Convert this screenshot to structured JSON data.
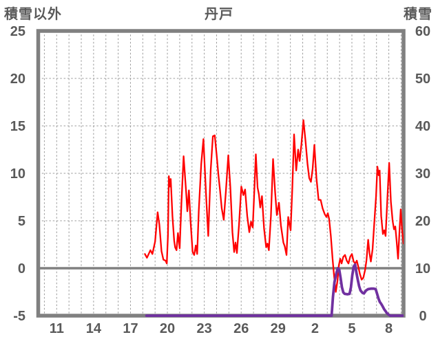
{
  "header": {
    "left_axis_title": "積雪以外",
    "chart_title": "丹戸",
    "right_axis_title": "積雪"
  },
  "colors": {
    "temperature_line": "#FF0000",
    "snow_line": "#7030A0",
    "border": "#808080",
    "zero_line": "#808080",
    "gridline": "#9B9B9B",
    "text": "#595959",
    "background": "#FFFFFF"
  },
  "chart_data": {
    "type": "line",
    "title": "丹戸",
    "grid": true,
    "legend": "none",
    "left_axis": {
      "label": "積雪以外",
      "min": -5,
      "max": 25,
      "tick_step": 5,
      "tick_labels": [
        "-5",
        "0",
        "5",
        "10",
        "15",
        "20",
        "25"
      ]
    },
    "right_axis": {
      "label": "積雪",
      "min": 0,
      "max": 60,
      "tick_step": 10,
      "tick_labels": [
        "0",
        "10",
        "20",
        "30",
        "40",
        "50",
        "60"
      ]
    },
    "x_axis": {
      "domain": [
        9.5,
        39.2
      ],
      "grid_step": 1,
      "note": "day-of-month scale: 11..30 = Nov 11-30, 31..39 = Dec 1-9",
      "ticks": [
        {
          "pos": 11,
          "label": "11"
        },
        {
          "pos": 14,
          "label": "14"
        },
        {
          "pos": 17,
          "label": "17"
        },
        {
          "pos": 20,
          "label": "20"
        },
        {
          "pos": 23,
          "label": "23"
        },
        {
          "pos": 26,
          "label": "26"
        },
        {
          "pos": 29,
          "label": "29"
        },
        {
          "pos": 32,
          "label": "2"
        },
        {
          "pos": 35,
          "label": "5"
        },
        {
          "pos": 38,
          "label": "8"
        }
      ]
    },
    "zero_line_value": 0,
    "series": [
      {
        "name": "積雪以外",
        "axis": "left",
        "color": "#FF0000",
        "stroke_width": 2.3,
        "points": [
          [
            18.17,
            1.5
          ],
          [
            18.34,
            1.1
          ],
          [
            18.62,
            1.9
          ],
          [
            18.78,
            1.5
          ],
          [
            19.0,
            2.8
          ],
          [
            19.21,
            5.9
          ],
          [
            19.35,
            4.6
          ],
          [
            19.52,
            1.8
          ],
          [
            19.68,
            0.9
          ],
          [
            19.85,
            0.8
          ],
          [
            19.95,
            0.5
          ],
          [
            20.05,
            3.5
          ],
          [
            20.12,
            9.7
          ],
          [
            20.19,
            8.6
          ],
          [
            20.27,
            9.4
          ],
          [
            20.41,
            5.5
          ],
          [
            20.55,
            2.9
          ],
          [
            20.63,
            2.2
          ],
          [
            20.74,
            1.9
          ],
          [
            20.86,
            3.7
          ],
          [
            21.0,
            2.1
          ],
          [
            21.14,
            6.8
          ],
          [
            21.32,
            11.8
          ],
          [
            21.52,
            8.1
          ],
          [
            21.62,
            6.0
          ],
          [
            21.75,
            8.2
          ],
          [
            21.9,
            4.6
          ],
          [
            22.05,
            1.7
          ],
          [
            22.18,
            1.4
          ],
          [
            22.31,
            2.4
          ],
          [
            22.42,
            1.5
          ],
          [
            22.55,
            6.0
          ],
          [
            22.75,
            11.0
          ],
          [
            22.93,
            13.6
          ],
          [
            23.15,
            7.6
          ],
          [
            23.32,
            3.4
          ],
          [
            23.52,
            10.3
          ],
          [
            23.7,
            13.9
          ],
          [
            23.85,
            14.0
          ],
          [
            24.0,
            12.0
          ],
          [
            24.15,
            9.8
          ],
          [
            24.28,
            8.2
          ],
          [
            24.42,
            6.3
          ],
          [
            24.58,
            5.1
          ],
          [
            24.75,
            8.0
          ],
          [
            24.95,
            11.9
          ],
          [
            25.12,
            8.5
          ],
          [
            25.29,
            3.8
          ],
          [
            25.43,
            1.7
          ],
          [
            25.54,
            2.7
          ],
          [
            25.65,
            1.6
          ],
          [
            25.82,
            4.5
          ],
          [
            26.01,
            8.6
          ],
          [
            26.18,
            7.7
          ],
          [
            26.32,
            8.3
          ],
          [
            26.49,
            5.5
          ],
          [
            26.66,
            3.8
          ],
          [
            26.8,
            4.9
          ],
          [
            26.94,
            4.3
          ],
          [
            27.08,
            8.5
          ],
          [
            27.19,
            12.0
          ],
          [
            27.33,
            8.5
          ],
          [
            27.44,
            7.8
          ],
          [
            27.55,
            6.4
          ],
          [
            27.69,
            7.6
          ],
          [
            27.86,
            4.2
          ],
          [
            28.03,
            2.2
          ],
          [
            28.14,
            2.6
          ],
          [
            28.25,
            1.9
          ],
          [
            28.42,
            5.5
          ],
          [
            28.59,
            11.5
          ],
          [
            28.76,
            8.0
          ],
          [
            28.9,
            5.6
          ],
          [
            29.07,
            6.9
          ],
          [
            29.23,
            4.5
          ],
          [
            29.43,
            2.7
          ],
          [
            29.54,
            2.3
          ],
          [
            29.68,
            1.4
          ],
          [
            29.82,
            5.4
          ],
          [
            29.93,
            4.6
          ],
          [
            30.02,
            4.0
          ],
          [
            30.16,
            8.5
          ],
          [
            30.3,
            14.1
          ],
          [
            30.47,
            10.3
          ],
          [
            30.63,
            12.5
          ],
          [
            30.75,
            11.3
          ],
          [
            30.89,
            13.0
          ],
          [
            31.06,
            15.6
          ],
          [
            31.22,
            13.5
          ],
          [
            31.39,
            11.0
          ],
          [
            31.53,
            9.5
          ],
          [
            31.67,
            9.1
          ],
          [
            31.81,
            10.5
          ],
          [
            31.95,
            13.0
          ],
          [
            32.12,
            9.5
          ],
          [
            32.29,
            7.2
          ],
          [
            32.46,
            7.2
          ],
          [
            32.62,
            6.3
          ],
          [
            32.79,
            5.7
          ],
          [
            32.93,
            5.4
          ],
          [
            33.04,
            5.8
          ],
          [
            33.15,
            5.2
          ],
          [
            33.29,
            3.4
          ],
          [
            33.43,
            1.0
          ],
          [
            33.55,
            -0.8
          ],
          [
            33.69,
            -2.5
          ],
          [
            33.83,
            -1.3
          ],
          [
            33.94,
            0.3
          ],
          [
            34.05,
            1.0
          ],
          [
            34.16,
            0.5
          ],
          [
            34.3,
            1.2
          ],
          [
            34.44,
            1.4
          ],
          [
            34.58,
            0.8
          ],
          [
            34.72,
            0.5
          ],
          [
            34.86,
            1.2
          ],
          [
            35.0,
            1.5
          ],
          [
            35.14,
            0.7
          ],
          [
            35.28,
            0.5
          ],
          [
            35.4,
            0.8
          ],
          [
            35.51,
            0.2
          ],
          [
            35.65,
            -0.6
          ],
          [
            35.79,
            -1.2
          ],
          [
            35.93,
            -1.0
          ],
          [
            36.07,
            -0.2
          ],
          [
            36.18,
            0.8
          ],
          [
            36.32,
            3.0
          ],
          [
            36.43,
            1.6
          ],
          [
            36.54,
            0.7
          ],
          [
            36.68,
            2.0
          ],
          [
            36.82,
            4.8
          ],
          [
            36.96,
            7.5
          ],
          [
            37.07,
            10.7
          ],
          [
            37.18,
            9.8
          ],
          [
            37.26,
            10.3
          ],
          [
            37.38,
            5.5
          ],
          [
            37.52,
            3.6
          ],
          [
            37.63,
            4.0
          ],
          [
            37.74,
            3.4
          ],
          [
            37.89,
            7.5
          ],
          [
            38.03,
            11.1
          ],
          [
            38.17,
            7.0
          ],
          [
            38.31,
            5.0
          ],
          [
            38.42,
            4.1
          ],
          [
            38.53,
            4.4
          ],
          [
            38.64,
            2.8
          ],
          [
            38.75,
            1.0
          ],
          [
            38.89,
            4.5
          ],
          [
            38.97,
            6.2
          ],
          [
            39.08,
            4.0
          ],
          [
            39.2,
            2.6
          ]
        ]
      },
      {
        "name": "積雪",
        "axis": "right",
        "color": "#7030A0",
        "stroke_width": 3.8,
        "points": [
          [
            18.3,
            0
          ],
          [
            33.35,
            0
          ],
          [
            33.46,
            4.0
          ],
          [
            33.58,
            7.0
          ],
          [
            33.74,
            9.0
          ],
          [
            33.86,
            10.0
          ],
          [
            33.97,
            9.7
          ],
          [
            34.08,
            8.0
          ],
          [
            34.19,
            6.0
          ],
          [
            34.3,
            4.9
          ],
          [
            34.42,
            4.6
          ],
          [
            34.64,
            4.5
          ],
          [
            34.81,
            4.6
          ],
          [
            34.92,
            6.0
          ],
          [
            35.03,
            8.5
          ],
          [
            35.14,
            10.3
          ],
          [
            35.26,
            10.8
          ],
          [
            35.37,
            9.0
          ],
          [
            35.48,
            7.5
          ],
          [
            35.59,
            6.2
          ],
          [
            35.7,
            5.3
          ],
          [
            35.87,
            4.8
          ],
          [
            35.98,
            4.7
          ],
          [
            36.15,
            5.3
          ],
          [
            36.32,
            5.6
          ],
          [
            36.54,
            5.7
          ],
          [
            36.77,
            5.7
          ],
          [
            36.93,
            5.6
          ],
          [
            37.05,
            4.6
          ],
          [
            37.16,
            3.6
          ],
          [
            37.27,
            2.9
          ],
          [
            37.38,
            2.5
          ],
          [
            37.49,
            2.0
          ],
          [
            37.61,
            1.4
          ],
          [
            37.72,
            1.0
          ],
          [
            37.83,
            0.6
          ],
          [
            37.94,
            0.3
          ],
          [
            38.06,
            0.1
          ],
          [
            38.11,
            0
          ],
          [
            39.2,
            0
          ]
        ]
      }
    ]
  }
}
